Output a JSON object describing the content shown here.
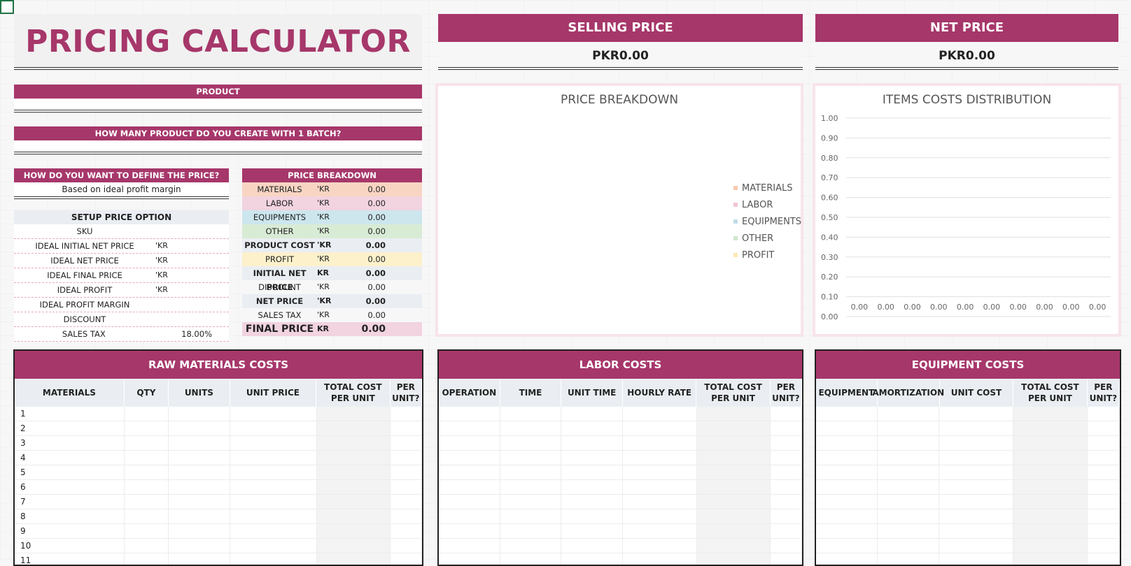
{
  "title": "PRICING CALCULATOR",
  "kpis": {
    "selling_label": "SELLING PRICE",
    "selling_value": "PKR0.00",
    "net_label": "NET PRICE",
    "net_value": "PKR0.00"
  },
  "product": {
    "label": "PRODUCT",
    "value": ""
  },
  "batch": {
    "label": "HOW MANY PRODUCT DO YOU CREATE WITH 1 BATCH?",
    "value": ""
  },
  "define": {
    "label": "HOW DO YOU WANT TO DEFINE THE PRICE?",
    "value": "Based on ideal profit margin"
  },
  "setup": {
    "header": "SETUP PRICE OPTION",
    "rows": [
      {
        "label": "SKU",
        "cur": "",
        "value": ""
      },
      {
        "label": "IDEAL INITIAL NET PRICE",
        "cur": "'KR",
        "value": ""
      },
      {
        "label": "IDEAL NET PRICE",
        "cur": "'KR",
        "value": ""
      },
      {
        "label": "IDEAL FINAL PRICE",
        "cur": "'KR",
        "value": ""
      },
      {
        "label": "IDEAL PROFIT",
        "cur": "'KR",
        "value": ""
      },
      {
        "label": "IDEAL PROFIT MARGIN",
        "cur": "",
        "value": ""
      },
      {
        "label": "DISCOUNT",
        "cur": "",
        "value": ""
      },
      {
        "label": "SALES TAX",
        "cur": "",
        "value": "18.00%"
      }
    ]
  },
  "breakdown": {
    "header": "PRICE BREAKDOWN",
    "rows": [
      {
        "label": "MATERIALS",
        "cur": "'KR",
        "value": "0.00",
        "bg": "#f8d5c3",
        "bold": false
      },
      {
        "label": "LABOR",
        "cur": "'KR",
        "value": "0.00",
        "bg": "#f2d3e0",
        "bold": false
      },
      {
        "label": "EQUIPMENTS",
        "cur": "'KR",
        "value": "0.00",
        "bg": "#cde6ee",
        "bold": false
      },
      {
        "label": "OTHER",
        "cur": "'KR",
        "value": "0.00",
        "bg": "#d8ebd5",
        "bold": false
      },
      {
        "label": "PRODUCT COST",
        "cur": "'KR",
        "value": "0.00",
        "bg": "#eaeef3",
        "bold": true
      },
      {
        "label": "PROFIT",
        "cur": "'KR",
        "value": "0.00",
        "bg": "#fdf1cc",
        "bold": false
      },
      {
        "label": "INITIAL NET PRICE",
        "cur": "KR",
        "value": "0.00",
        "bg": "#eaeef3",
        "bold": true
      },
      {
        "label": "DISCOUNT",
        "cur": "'KR",
        "value": "0.00",
        "bg": "#f7f7f7",
        "bold": false
      },
      {
        "label": "NET PRICE",
        "cur": "'KR",
        "value": "0.00",
        "bg": "#eaeef3",
        "bold": true
      },
      {
        "label": "SALES TAX",
        "cur": "'KR",
        "value": "0.00",
        "bg": "#f7f7f7",
        "bold": false
      },
      {
        "label": "FINAL PRICE",
        "cur": "KR",
        "value": "0.00",
        "bg": "#f2d3e0",
        "bold": true
      }
    ]
  },
  "chart_data": [
    {
      "type": "pie",
      "title": "PRICE BREAKDOWN",
      "categories": [
        "MATERIALS",
        "LABOR",
        "EQUIPMENTS",
        "OTHER",
        "PROFIT"
      ],
      "values": [
        0,
        0,
        0,
        0,
        0
      ],
      "colors": [
        "#f8c9b0",
        "#f2c4d6",
        "#bfdce8",
        "#cfe6cc",
        "#fde9b3"
      ],
      "legend": "right"
    },
    {
      "type": "bar",
      "title": "ITEMS COSTS DISTRIBUTION",
      "categories": [
        "",
        "",
        "",
        "",
        "",
        "",
        "",
        "",
        "",
        ""
      ],
      "values": [
        0.0,
        0.0,
        0.0,
        0.0,
        0.0,
        0.0,
        0.0,
        0.0,
        0.0,
        0.0
      ],
      "data_labels": [
        "0.00",
        "0.00",
        "0.00",
        "0.00",
        "0.00",
        "0.00",
        "0.00",
        "0.00",
        "0.00",
        "0.00"
      ],
      "ylim": [
        0,
        1.0
      ],
      "yticks": [
        "1.00",
        "0.90",
        "0.80",
        "0.70",
        "0.60",
        "0.50",
        "0.40",
        "0.30",
        "0.20",
        "0.10",
        "0.00"
      ],
      "grid": true
    }
  ],
  "tables": {
    "raw": {
      "title": "RAW MATERIALS COSTS",
      "columns": [
        "MATERIALS",
        "QTY",
        "UNITS",
        "UNIT PRICE",
        "TOTAL COST PER UNIT",
        "PER UNIT?"
      ],
      "row_numbers": [
        "1",
        "2",
        "3",
        "4",
        "5",
        "6",
        "7",
        "8",
        "9",
        "10",
        "11"
      ]
    },
    "labor": {
      "title": "LABOR COSTS",
      "columns": [
        "OPERATION",
        "TIME",
        "UNIT TIME",
        "HOURLY RATE",
        "TOTAL COST PER UNIT",
        "PER UNIT?"
      ]
    },
    "equipment": {
      "title": "EQUIPMENT COSTS",
      "columns": [
        "EQUIPMENT",
        "AMORTIZATION",
        "UNIT COST",
        "TOTAL COST PER UNIT",
        "PER UNIT?"
      ]
    }
  }
}
